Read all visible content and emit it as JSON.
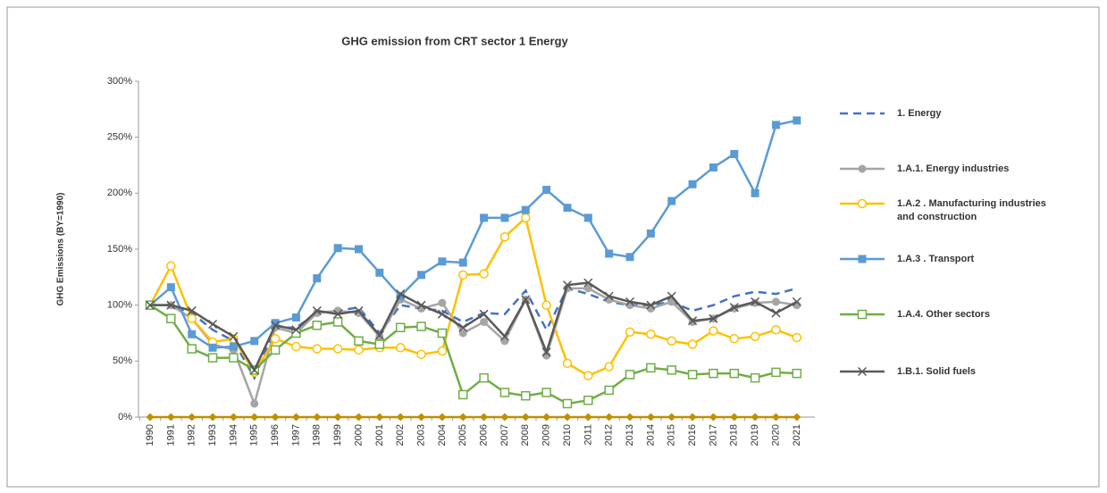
{
  "chart_data": {
    "type": "line",
    "title": "GHG emission  from CRT sector 1 Energy",
    "y_label": "GHG Emissions (BY=1990)",
    "categories": [
      "1990",
      "1991",
      "1992",
      "1993",
      "1994",
      "1995",
      "1996",
      "1997",
      "1998",
      "1999",
      "2000",
      "2001",
      "2002",
      "2003",
      "2004",
      "2005",
      "2006",
      "2007",
      "2008",
      "2009",
      "2010",
      "2011",
      "2012",
      "2013",
      "2014",
      "2015",
      "2016",
      "2017",
      "2018",
      "2019",
      "2020",
      "2021"
    ],
    "ylim": [
      0,
      300
    ],
    "yticks": [
      {
        "value": 0,
        "label": "0%"
      },
      {
        "value": 50,
        "label": "50%"
      },
      {
        "value": 100,
        "label": "100%"
      },
      {
        "value": 150,
        "label": "150%"
      },
      {
        "value": 200,
        "label": "200%"
      },
      {
        "value": 250,
        "label": "250%"
      },
      {
        "value": 300,
        "label": "300%"
      }
    ],
    "grid": false,
    "legend": "right",
    "series": [
      {
        "name": "1. Energy",
        "color": "#4472c4",
        "dash": true,
        "marker": "none",
        "values": [
          100,
          100,
          93,
          78,
          68,
          35,
          80,
          80,
          93,
          95,
          98,
          75,
          100,
          97,
          95,
          85,
          93,
          92,
          113,
          78,
          115,
          110,
          103,
          100,
          100,
          103,
          95,
          100,
          108,
          112,
          110,
          115
        ]
      },
      {
        "name": "1.A.1. Energy industries",
        "color": "#a5a5a5",
        "dash": false,
        "marker": "circle",
        "values": [
          100,
          100,
          88,
          65,
          60,
          12,
          80,
          75,
          93,
          95,
          93,
          72,
          105,
          97,
          102,
          75,
          85,
          68,
          105,
          55,
          115,
          115,
          105,
          100,
          97,
          103,
          85,
          88,
          97,
          102,
          103,
          100
        ]
      },
      {
        "name": "1.A.2 . Manufacturing industries and construction",
        "color": "#ffc000",
        "dash": false,
        "marker": "open-circle",
        "values": [
          100,
          135,
          88,
          67,
          70,
          40,
          70,
          63,
          61,
          61,
          60,
          62,
          62,
          56,
          59,
          127,
          128,
          161,
          178,
          100,
          48,
          37,
          45,
          76,
          74,
          68,
          65,
          77,
          70,
          72,
          78,
          71
        ]
      },
      {
        "name": "1.A.3 . Transport",
        "color": "#5b9bd5",
        "dash": false,
        "marker": "square",
        "values": [
          100,
          116,
          74,
          62,
          63,
          68,
          84,
          89,
          124,
          151,
          150,
          129,
          108,
          127,
          139,
          138,
          178,
          178,
          185,
          203,
          187,
          178,
          146,
          143,
          164,
          193,
          208,
          223,
          235,
          200,
          261,
          265
        ]
      },
      {
        "name": "1.A.4.  Other sectors",
        "color": "#70ad47",
        "dash": false,
        "marker": "open-square",
        "values": [
          100,
          88,
          61,
          53,
          53,
          42,
          60,
          75,
          82,
          85,
          68,
          65,
          80,
          81,
          75,
          20,
          35,
          22,
          19,
          22,
          12,
          15,
          24,
          38,
          44,
          42,
          38,
          39,
          39,
          35,
          40,
          39
        ]
      },
      {
        "name": "1.B.1.  Solid fuels",
        "color": "#595959",
        "dash": false,
        "marker": "x",
        "values": [
          100,
          100,
          95,
          83,
          72,
          42,
          82,
          78,
          95,
          92,
          95,
          73,
          110,
          100,
          92,
          80,
          92,
          72,
          105,
          58,
          118,
          120,
          108,
          103,
          100,
          108,
          86,
          88,
          98,
          103,
          93,
          103
        ]
      },
      {
        "color": "#bf9000",
        "dash": false,
        "marker": "diamond",
        "values": [
          0,
          0,
          0,
          0,
          0,
          0,
          0,
          0,
          0,
          0,
          0,
          0,
          0,
          0,
          0,
          0,
          0,
          0,
          0,
          0,
          0,
          0,
          0,
          0,
          0,
          0,
          0,
          0,
          0,
          0,
          0,
          0
        ]
      }
    ]
  }
}
